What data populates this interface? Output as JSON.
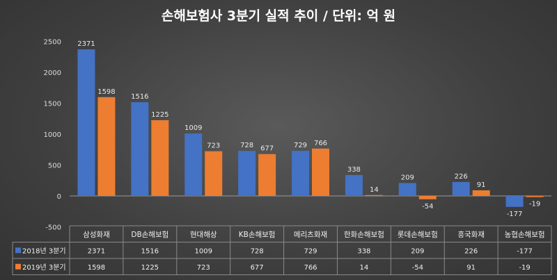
{
  "chart_data": {
    "type": "bar",
    "title": "손해보험사 3분기 실적 추이 / 단위: 억 원",
    "categories": [
      "삼성화재",
      "DB손해보험",
      "현대해상",
      "KB손해보험",
      "메리츠화재",
      "한화손해보험",
      "롯데손해보험",
      "흥국화재",
      "농협손해보험"
    ],
    "series": [
      {
        "name": "2018년 3분기",
        "color": "#4472c4",
        "values": [
          2371,
          1516,
          1009,
          728,
          729,
          338,
          209,
          226,
          -177
        ]
      },
      {
        "name": "2019년 3분기",
        "color": "#ed7d31",
        "values": [
          1598,
          1225,
          723,
          677,
          766,
          14,
          -54,
          91,
          -19
        ]
      }
    ],
    "ylim": [
      -500,
      2500
    ],
    "yticks": [
      -500,
      0,
      500,
      1000,
      1500,
      2000,
      2500
    ],
    "legend": "data-table",
    "grid": false
  }
}
